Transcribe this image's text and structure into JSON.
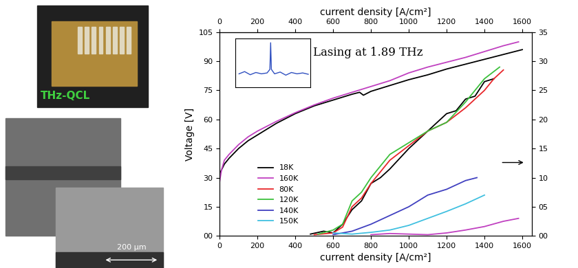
{
  "chart_data": {
    "type": "line",
    "xlabel": "current density [A/cm²]",
    "x2label": "current density [A/cm²]",
    "ylabel": "Voltage [V]",
    "xlim": [
      0,
      1650
    ],
    "xticks": [
      0,
      200,
      400,
      600,
      800,
      1000,
      1200,
      1400,
      1600
    ],
    "ylim": [
      0,
      105
    ],
    "yticks": [
      {
        "value": 0,
        "label": "00"
      },
      15,
      30,
      45,
      60,
      75,
      90,
      105
    ],
    "y2lim": [
      0,
      35
    ],
    "y2ticks": [
      {
        "value": 0,
        "label": "00"
      },
      {
        "value": 5,
        "label": "05"
      },
      10,
      15,
      20,
      25,
      30,
      35
    ],
    "legend": "lower left",
    "series": [
      {
        "name": "18K",
        "color": "#000000",
        "axis": "y",
        "x": [
          0,
          25,
          50,
          100,
          150,
          200,
          300,
          400,
          500,
          600,
          700,
          740,
          760,
          800,
          900,
          1000,
          1100,
          1200,
          1300,
          1400,
          1500,
          1600
        ],
        "values": [
          32,
          37,
          40,
          45,
          49,
          52,
          58,
          63,
          67,
          70,
          73,
          74,
          72.5,
          74.5,
          77.5,
          80.5,
          83,
          86,
          88.5,
          91,
          93.5,
          96
        ]
      },
      {
        "name": "160K",
        "color": "#c040c0",
        "axis": "y",
        "x": [
          0,
          10,
          25,
          50,
          100,
          150,
          200,
          300,
          400,
          500,
          600,
          700,
          800,
          900,
          1000,
          1100,
          1200,
          1300,
          1400,
          1500,
          1580
        ],
        "values": [
          28,
          34,
          39,
          42,
          47,
          51,
          54,
          59,
          63.5,
          67.5,
          71,
          74,
          77,
          80,
          84,
          87,
          89.5,
          92,
          95,
          98,
          100
        ]
      },
      {
        "name": "18K",
        "color": "#000000",
        "axis": "y2",
        "x": [
          480,
          550,
          600,
          650,
          700,
          750,
          800,
          850,
          900,
          1000,
          1100,
          1200,
          1250,
          1300,
          1350,
          1400,
          1450
        ],
        "values": [
          0.3,
          0.8,
          0.5,
          2,
          4.5,
          6,
          9,
          10,
          11.5,
          15,
          18,
          21,
          21.5,
          23.5,
          24,
          26.5,
          27
        ]
      },
      {
        "name": "80K",
        "color": "#e8262a",
        "axis": "y2",
        "x": [
          500,
          600,
          650,
          700,
          750,
          800,
          900,
          1000,
          1100,
          1200,
          1300,
          1400,
          1450,
          1500
        ],
        "values": [
          0.2,
          0.5,
          1.5,
          5,
          6.5,
          9,
          13,
          15.5,
          18,
          19.5,
          22,
          25,
          27,
          28.5
        ]
      },
      {
        "name": "120K",
        "color": "#3cc03c",
        "axis": "y2",
        "x": [
          520,
          600,
          650,
          700,
          750,
          800,
          900,
          1000,
          1100,
          1200,
          1300,
          1400,
          1480
        ],
        "values": [
          0.3,
          1,
          2,
          6,
          7.5,
          10,
          14,
          16,
          18,
          19.5,
          23,
          27,
          29
        ]
      },
      {
        "name": "140K",
        "color": "#4040c0",
        "axis": "y2",
        "x": [
          600,
          700,
          800,
          900,
          1000,
          1100,
          1200,
          1300,
          1360
        ],
        "values": [
          0.2,
          0.8,
          2,
          3.5,
          5,
          7,
          8,
          9.5,
          10
        ]
      },
      {
        "name": "150K",
        "color": "#40c0e0",
        "axis": "y2",
        "x": [
          600,
          700,
          800,
          900,
          1000,
          1100,
          1200,
          1300,
          1400
        ],
        "values": [
          0.5,
          0.3,
          0.6,
          1,
          1.8,
          3,
          4.2,
          5.5,
          7
        ]
      },
      {
        "name": "160K",
        "color": "#c040c0",
        "axis": "y2",
        "x": [
          800,
          900,
          1000,
          1100,
          1200,
          1300,
          1400,
          1500,
          1580
        ],
        "values": [
          0.2,
          0.4,
          0.3,
          0.2,
          0.5,
          1,
          1.6,
          2.5,
          3
        ]
      }
    ],
    "inset": {
      "title": "Lasing at 1.89 THz",
      "color": "#3050c0",
      "tick_labels": false,
      "xlim": [
        0,
        4
      ],
      "ylim": [
        0,
        1.1
      ],
      "x": [
        0.2,
        0.5,
        0.8,
        1.1,
        1.4,
        1.7,
        1.85,
        1.89,
        1.93,
        2.1,
        2.4,
        2.7,
        3.0,
        3.3,
        3.6,
        3.9
      ],
      "values": [
        0.3,
        0.35,
        0.28,
        0.33,
        0.3,
        0.32,
        0.4,
        1.0,
        0.4,
        0.3,
        0.34,
        0.27,
        0.33,
        0.3,
        0.32,
        0.29
      ]
    }
  },
  "photos": {
    "label": "THz-QCL",
    "scale_bar": "200 µm"
  }
}
